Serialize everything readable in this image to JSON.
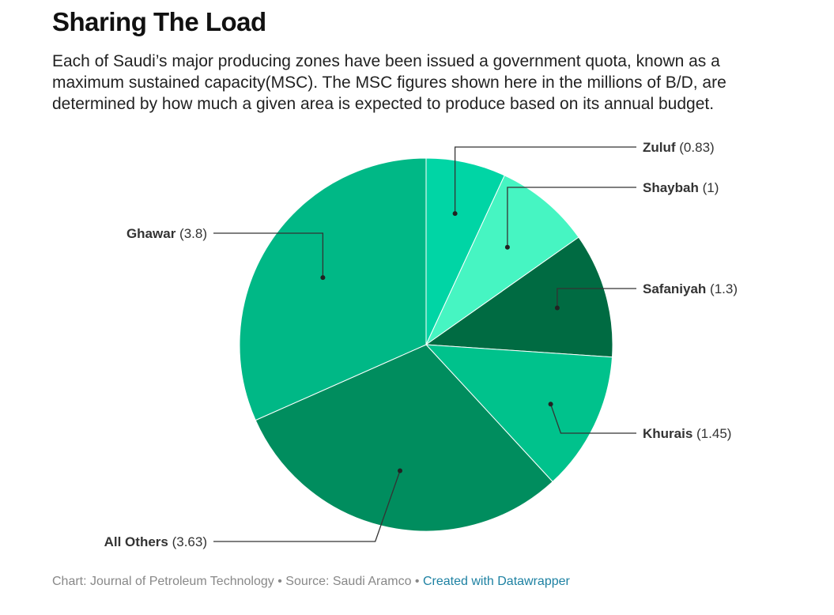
{
  "title": "Sharing The Load",
  "description": "Each of Saudi’s major producing zones have been issued a government quota, known as a maximum sustained capacity(MSC). The MSC figures shown here in the millions of B/D, are determined by how much a given area is expected to produce based on its annual budget.",
  "footer": {
    "chart_credit": "Chart: Journal of Petroleum Technology",
    "separator": "•",
    "source": "Source: Saudi Aramco",
    "created_with": "Created with Datawrapper"
  },
  "chart_data": {
    "type": "pie",
    "title": "Sharing The Load",
    "unit": "millions of B/D",
    "start_angle_deg": 0,
    "direction": "clockwise",
    "slices": [
      {
        "label": "Zuluf",
        "value": 0.83,
        "value_text": "(0.83)",
        "color": "#00d5a5"
      },
      {
        "label": "Shaybah",
        "value": 1,
        "value_text": "(1)",
        "color": "#46f5c2"
      },
      {
        "label": "Safaniyah",
        "value": 1.3,
        "value_text": "(1.3)",
        "color": "#006b42"
      },
      {
        "label": "Khurais",
        "value": 1.45,
        "value_text": "(1.45)",
        "color": "#00c28c"
      },
      {
        "label": "All Others",
        "value": 3.63,
        "value_text": "(3.63)",
        "color": "#008d5e"
      },
      {
        "label": "Ghawar",
        "value": 3.8,
        "value_text": "(3.8)",
        "color": "#00b886"
      }
    ]
  }
}
